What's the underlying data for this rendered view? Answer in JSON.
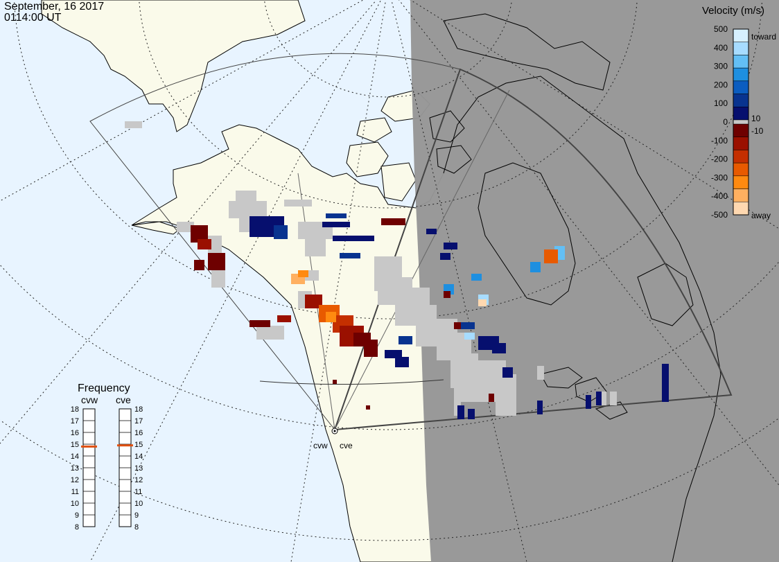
{
  "header": {
    "date": "September, 16 2017",
    "time": "0114:00 UT"
  },
  "velocity_scale": {
    "title": "Velocity (m/s)",
    "ticks": [
      "500",
      "400",
      "300",
      "200",
      "100",
      "0",
      "-100",
      "-200",
      "-300",
      "-400",
      "-500"
    ],
    "inner_labels": [
      "10",
      "-10"
    ],
    "toward_label": "toward",
    "away_label": "away",
    "colors": [
      "#d6f0ff",
      "#a7dcff",
      "#63bff5",
      "#1e8fe0",
      "#0b5dc0",
      "#08338f",
      "#060f6e",
      "#6e0000",
      "#9a1000",
      "#c42f00",
      "#e85a00",
      "#ff8a10",
      "#ffb060",
      "#ffd8b0"
    ]
  },
  "frequency": {
    "title": "Frequency",
    "left_label": "cvw",
    "right_label": "cve",
    "levels": [
      "18",
      "17",
      "16",
      "15",
      "14",
      "13",
      "12",
      "11",
      "10",
      "9",
      "8"
    ],
    "cvw_value": 14.8,
    "cve_value": 14.9,
    "marker_color": "#e05010"
  },
  "radars": {
    "west_label": "cvw",
    "east_label": "cve"
  },
  "colors": {
    "ocean": "#e8f4ff",
    "land": "#fafaea",
    "night": "#969696",
    "ground_scatter": "#c8c8c8",
    "coast": "#000000",
    "fov": "#555555"
  }
}
